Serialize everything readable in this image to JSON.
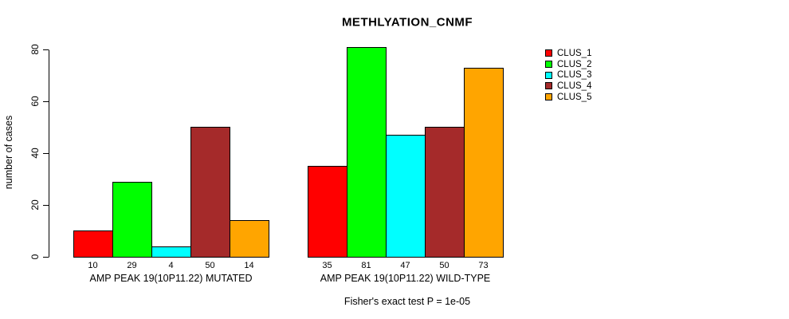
{
  "title": "METHLYATION_CNMF",
  "y_axis": {
    "label": "number of cases",
    "ticks": [
      0,
      20,
      40,
      60,
      80
    ]
  },
  "footer": "Fisher's exact test P = 1e-05",
  "colors": {
    "background": "#FFFFFF",
    "bar_border": "#000000",
    "text": "#000000"
  },
  "chart_data": {
    "type": "bar",
    "title": "METHLYATION_CNMF",
    "xlabel": "",
    "ylabel": "number of cases",
    "ylim": [
      0,
      80
    ],
    "yticks": [
      0,
      20,
      40,
      60,
      80
    ],
    "grid": false,
    "legend_position": "right",
    "series_names": [
      "CLUS_1",
      "CLUS_2",
      "CLUS_3",
      "CLUS_4",
      "CLUS_5"
    ],
    "series_colors": [
      "#FF0000",
      "#00FF00",
      "#00FFFF",
      "#A52A2A",
      "#FFA500"
    ],
    "groups": [
      {
        "label": "AMP PEAK 19(10P11.22) MUTATED",
        "values": [
          10,
          29,
          4,
          50,
          14
        ]
      },
      {
        "label": "AMP PEAK 19(10P11.22) WILD-TYPE",
        "values": [
          35,
          81,
          47,
          50,
          73
        ]
      }
    ],
    "value_labels_shown": true,
    "annotation": "Fisher's exact test P = 1e-05"
  }
}
